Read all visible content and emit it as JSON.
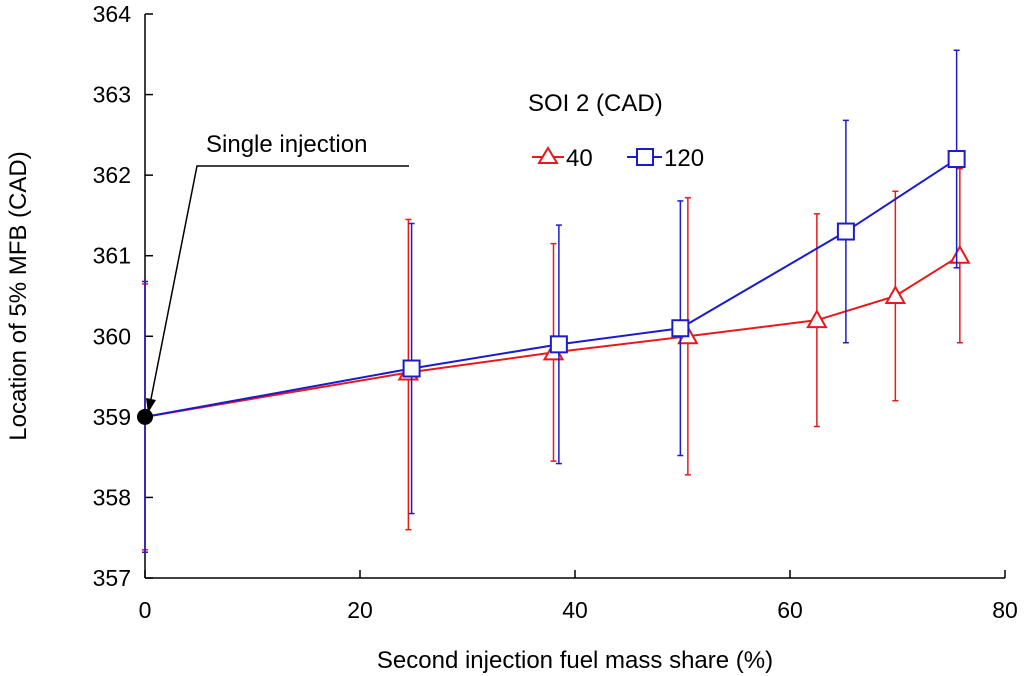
{
  "chart_data": {
    "type": "line",
    "title": "",
    "xlabel": "Second injection fuel mass share (%)",
    "ylabel": "Location of 5% MFB (CAD)",
    "xlim": [
      0,
      80
    ],
    "ylim": [
      357,
      364
    ],
    "xticks": [
      "0",
      "20",
      "40",
      "60",
      "80"
    ],
    "yticks": [
      "357",
      "358",
      "359",
      "360",
      "361",
      "362",
      "363",
      "364"
    ],
    "grid": false,
    "legend": {
      "title": "SOI 2 (CAD)",
      "position": "upper-middle"
    },
    "series": [
      {
        "name": "40",
        "color": "#e8191c",
        "marker": "triangle",
        "points": [
          {
            "x": 0,
            "y": 359.0,
            "lo": 357.35,
            "hi": 360.65
          },
          {
            "x": 24.5,
            "y": 359.55,
            "lo": 357.6,
            "hi": 361.45
          },
          {
            "x": 38.0,
            "y": 359.8,
            "lo": 358.45,
            "hi": 361.15
          },
          {
            "x": 50.5,
            "y": 360.0,
            "lo": 358.28,
            "hi": 361.72
          },
          {
            "x": 62.5,
            "y": 360.2,
            "lo": 358.88,
            "hi": 361.52
          },
          {
            "x": 69.8,
            "y": 360.5,
            "lo": 359.2,
            "hi": 361.8
          },
          {
            "x": 75.8,
            "y": 361.0,
            "lo": 359.92,
            "hi": 362.08
          }
        ]
      },
      {
        "name": "120",
        "color": "#1c1ccc",
        "marker": "square",
        "points": [
          {
            "x": 0,
            "y": 359.0,
            "lo": 357.32,
            "hi": 360.68
          },
          {
            "x": 24.8,
            "y": 359.6,
            "lo": 357.8,
            "hi": 361.4
          },
          {
            "x": 38.5,
            "y": 359.9,
            "lo": 358.42,
            "hi": 361.38
          },
          {
            "x": 49.8,
            "y": 360.1,
            "lo": 358.52,
            "hi": 361.68
          },
          {
            "x": 65.2,
            "y": 361.3,
            "lo": 359.92,
            "hi": 362.68
          },
          {
            "x": 75.5,
            "y": 362.2,
            "lo": 360.85,
            "hi": 363.55
          }
        ]
      }
    ],
    "annotations": [
      {
        "text": "Single injection",
        "x": 0,
        "y": 359.0
      }
    ]
  }
}
